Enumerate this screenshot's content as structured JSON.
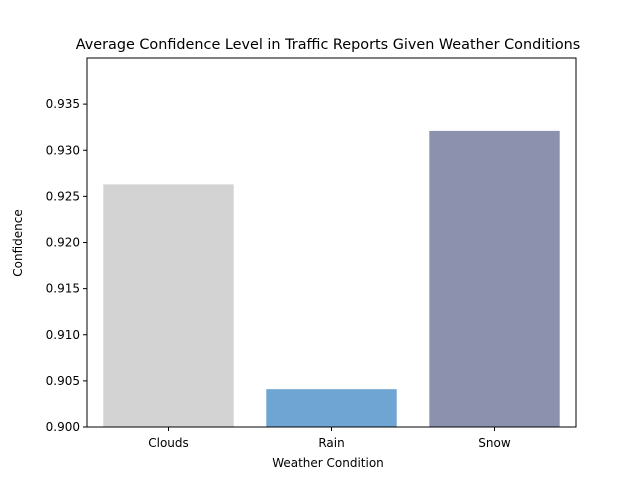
{
  "chart_data": {
    "type": "bar",
    "title": "Average Confidence Level in Traffic Reports Given Weather Conditions",
    "xlabel": "Weather Condition",
    "ylabel": "Confidence",
    "categories": [
      "Clouds",
      "Rain",
      "Snow"
    ],
    "values": [
      0.9263,
      0.9041,
      0.9321
    ],
    "colors": [
      "#d3d3d3",
      "#6fa5d3",
      "#8c92ad"
    ],
    "ylim": [
      0.9,
      0.94
    ],
    "yticks": [
      "0.900",
      "0.905",
      "0.910",
      "0.915",
      "0.920",
      "0.925",
      "0.930",
      "0.935"
    ],
    "grid": false
  }
}
